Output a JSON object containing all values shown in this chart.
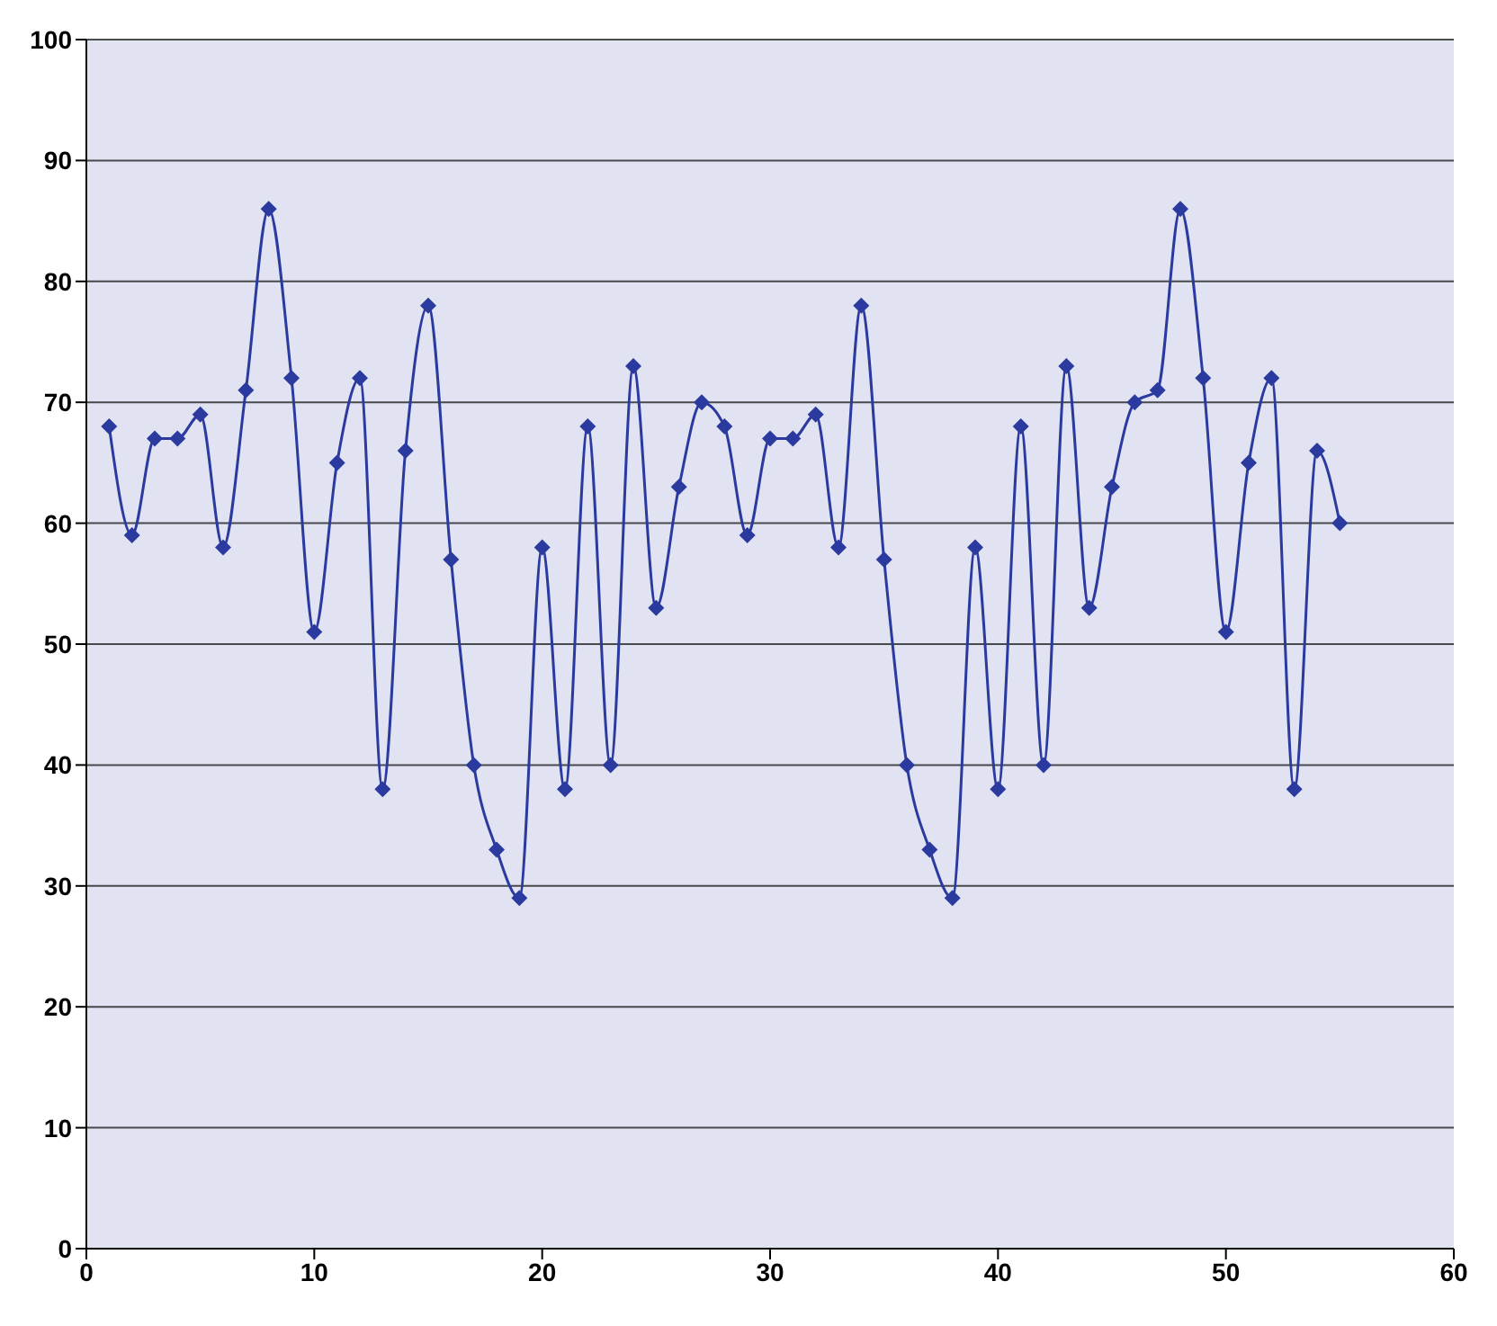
{
  "chart_data": {
    "type": "line",
    "x": [
      1,
      2,
      3,
      4,
      5,
      6,
      7,
      8,
      9,
      10,
      11,
      12,
      13,
      14,
      15,
      16,
      17,
      18,
      19,
      20,
      21,
      22,
      23,
      24,
      25,
      26,
      27,
      28,
      29,
      30,
      31,
      32,
      33,
      34,
      35,
      36,
      37,
      38,
      39,
      40,
      41,
      42,
      43,
      44,
      45,
      46,
      47,
      48,
      49,
      50,
      51,
      52,
      53,
      54,
      55
    ],
    "series": [
      {
        "color": "#2b3a9e",
        "values": [
          68,
          59,
          67,
          67,
          69,
          58,
          71,
          86,
          72,
          51,
          65,
          72,
          38,
          66,
          78,
          57,
          40,
          33,
          29,
          58,
          38,
          68,
          40,
          73,
          53,
          63,
          70,
          68,
          59,
          67,
          67,
          69,
          58,
          78,
          57,
          40,
          33,
          29,
          58,
          38,
          68,
          40,
          73,
          53,
          63,
          70,
          71,
          86,
          72,
          51,
          65,
          72,
          38,
          66,
          60
        ]
      }
    ],
    "xlim": [
      0,
      60
    ],
    "xticks": [
      0,
      10,
      20,
      30,
      40,
      50,
      60
    ],
    "ylim": [
      0,
      100
    ],
    "yticks": [
      0,
      10,
      20,
      30,
      40,
      50,
      60,
      70,
      80,
      90,
      100
    ],
    "grid": "y",
    "marker": "diamond",
    "line_style": "solid"
  }
}
